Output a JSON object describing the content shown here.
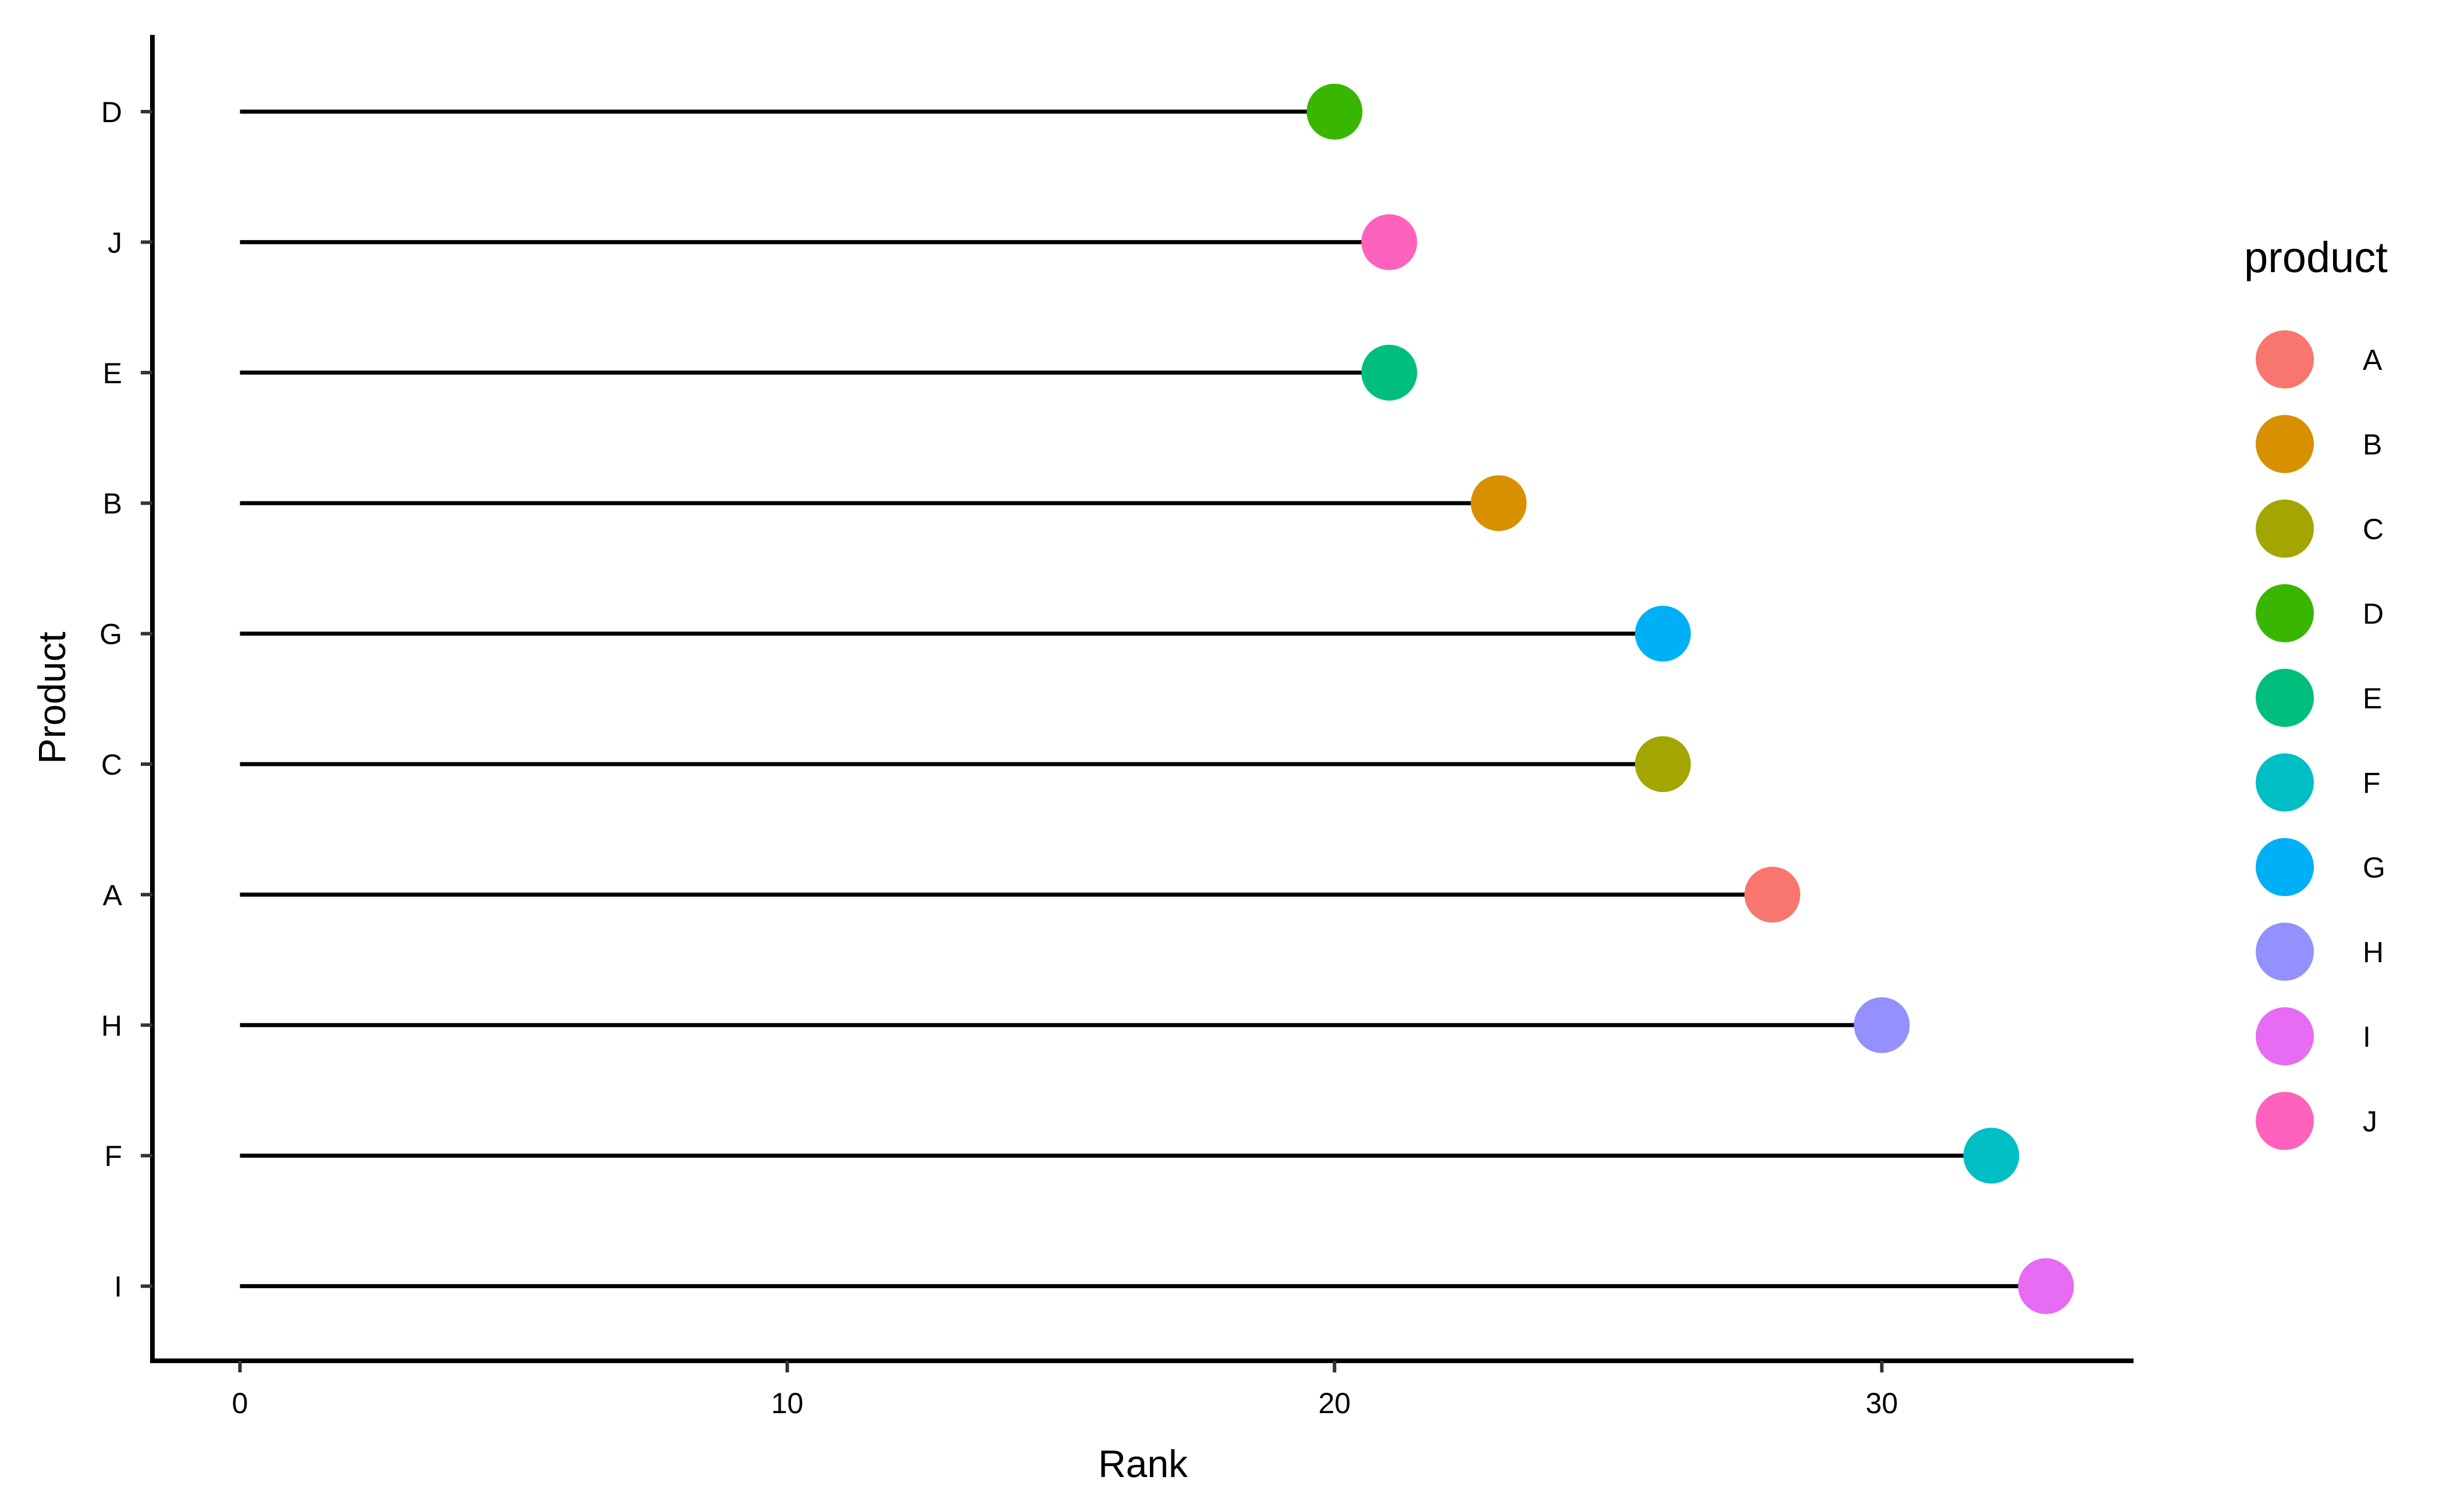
{
  "chart_data": {
    "type": "lollipop",
    "orientation": "horizontal",
    "xlabel": "Rank",
    "ylabel": "Product",
    "xlim": [
      -1.6,
      34.6
    ],
    "x_ticks": [
      0,
      10,
      20,
      30
    ],
    "grid": false,
    "legend": {
      "title": "product",
      "position": "right",
      "entries": [
        {
          "label": "A",
          "color": "#F8766D"
        },
        {
          "label": "B",
          "color": "#D89000"
        },
        {
          "label": "C",
          "color": "#A3A500"
        },
        {
          "label": "D",
          "color": "#39B600"
        },
        {
          "label": "E",
          "color": "#00BF7D"
        },
        {
          "label": "F",
          "color": "#00BFC4"
        },
        {
          "label": "G",
          "color": "#00B0F6"
        },
        {
          "label": "H",
          "color": "#9590FF"
        },
        {
          "label": "I",
          "color": "#E76BF3"
        },
        {
          "label": "J",
          "color": "#FF62BC"
        }
      ]
    },
    "categories": [
      "D",
      "J",
      "E",
      "B",
      "G",
      "C",
      "A",
      "H",
      "F",
      "I"
    ],
    "values": [
      20,
      21,
      21,
      23,
      26,
      26,
      28,
      30,
      32,
      33
    ],
    "stem_color": "#000000"
  }
}
